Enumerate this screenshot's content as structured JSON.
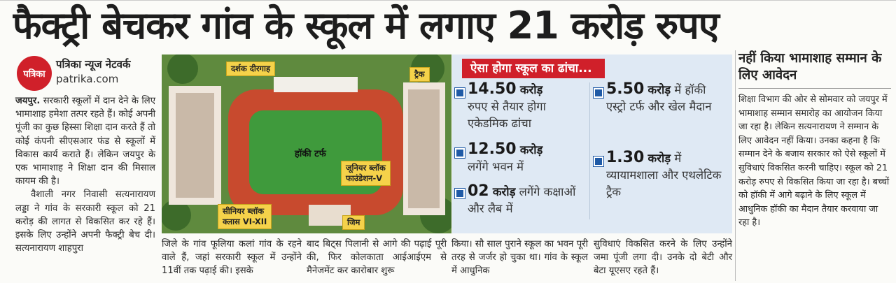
{
  "headline": "फैक्ट्री बेचकर गांव के स्कूल में लगाए 21 करोड़ रुपए",
  "source": {
    "logo_text": "पत्रिका",
    "byline": "पत्रिका न्यूज नेटवर्क",
    "site": "patrika.com"
  },
  "story": {
    "col1_city": "जयपुर.",
    "col1_text": "सरकारी स्कूलों में दान देने के लिए भामाशाह हमेशा तत्पर रहते हैं। कोई अपनी पूंजी का कुछ हिस्सा शिक्षा दान करते हैं तो कोई कंपनी सीएसआर फंड से स्कूलों में विकास कार्य कराते हैं। लेकिन जयपुर के एक भामाशाह ने शिक्षा दान की मिसाल कायम की है।",
    "col1_para2": "वैशाली नगर निवासी सत्यनारायण लड्डा ने गांव के सरकारी स्कूल को 21 करोड़ की लागत से विकसित कर रहे हैं। इसके लिए उन्होंने अपनी फैक्ट्री बेच दी। सत्यनारायण शाहपुरा",
    "col2_text": "जिले के गांव फूलिया कलां गांव के रहने वाले हैं, जहां सरकारी स्कूल में उन्होंने 11वीं तक पढ़ाई की। इसके",
    "col3_text": "बाद बिट्स पिलानी से आगे की पढ़ाई पूरी की, फिर कोलकाता आईआईएम से मैनेजमेंट कर कारोबार शुरू",
    "col4_text": "किया। सौ साल पुराने स्कूल का भवन पूरी तरह से जर्जर हो चुका था। गांव के स्कूल में आधुनिक",
    "col5_text": "सुविधाएं विकसित करने के लिए उन्होंने जमा पूंजी लगा दी। उनके दो बेटी और बेटा यूएसए रहते हैं।"
  },
  "photo": {
    "labels": {
      "stands": "दर्शक दीरगाह",
      "track": "ट्रैक",
      "turf": "हॉकी टर्फ",
      "junior_line1": "जूनियर ब्लॉक",
      "junior_line2": "फाउंडेशन-V",
      "senior_line1": "सीनियर ब्लॉक",
      "senior_line2": "क्लास VI-XII",
      "gym": "जिम"
    }
  },
  "infobox": {
    "title": "ऐसा होगा स्कूल का ढांचा...",
    "items": [
      {
        "num": "14.50",
        "unit": "करोड़",
        "text": "रुपए से तैयार होगा एकेडमिक ढांचा"
      },
      {
        "num": "12.50",
        "unit": "करोड़",
        "text": "लगेंगे भवन में"
      },
      {
        "num": "02",
        "unit": "करोड़",
        "text": "लगेंगे कक्षाओं और लैब में"
      },
      {
        "num": "5.50",
        "unit": "करोड़",
        "text": "में हॉकी एस्ट्रो टर्फ और खेल मैदान"
      },
      {
        "num": "1.30",
        "unit": "करोड़",
        "text": "में व्यायामशाला और एथलेटिक ट्रैक"
      }
    ]
  },
  "sidebar": {
    "heading": "नहीं किया भामाशाह सम्मान के लिए आवेदन",
    "text": "शिक्षा विभाग की ओर से सोमवार को जयपुर में भामाशाह सम्मान समारोह का आयोजन किया जा रहा है। लेकिन सत्यनारायण ने सम्मान के लिए आवेदन नहीं किया। उनका कहना है कि सम्मान देने के बजाय सरकार को ऐसे स्कूलों में सुविधाएं विकसित करनी चाहिए। स्कूल को 21 करोड़ रुपए से विकसित किया जा रहा है। बच्चों को हॉकी में आगे बढ़ाने के लिए स्कूल में आधुनिक हॉकी का मैदान तैयार करवाया जा रहा है।"
  },
  "colors": {
    "accent": "#d0202a",
    "info_bg": "#dfe9f4",
    "bullet": "#1f5aa6",
    "tag": "#f5d24a"
  }
}
